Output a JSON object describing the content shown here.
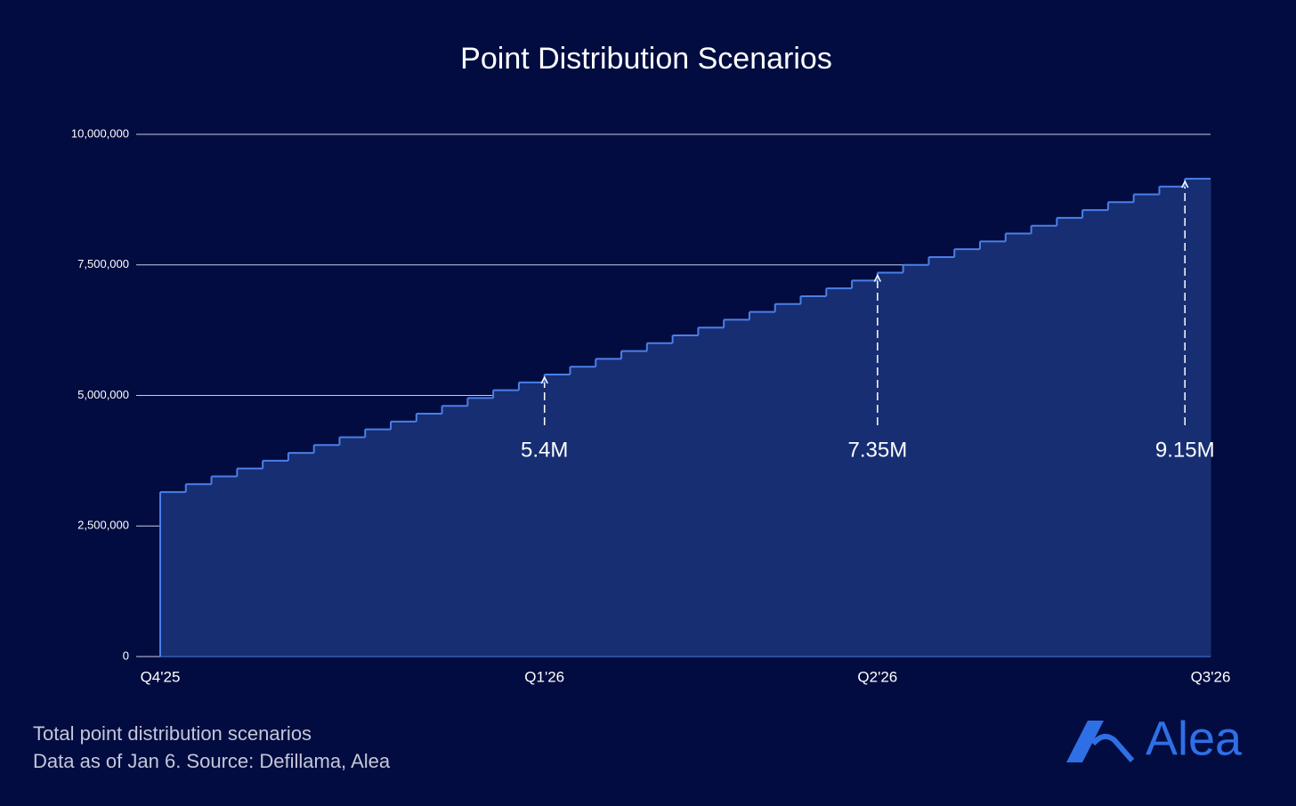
{
  "chart_data": {
    "type": "step-area",
    "title": "Point Distribution Scenarios",
    "x": [
      0,
      1,
      2,
      3,
      4,
      5,
      6,
      7,
      8,
      9,
      10,
      11,
      12,
      13,
      14,
      15,
      16,
      17,
      18,
      19,
      20,
      21,
      22,
      23,
      24,
      25,
      26,
      27,
      28,
      29,
      30,
      31,
      32,
      33,
      34,
      35,
      36,
      37,
      38,
      39,
      40
    ],
    "values": [
      3150000,
      3300000,
      3450000,
      3600000,
      3750000,
      3900000,
      4050000,
      4200000,
      4350000,
      4500000,
      4650000,
      4800000,
      4950000,
      5100000,
      5250000,
      5400000,
      5550000,
      5700000,
      5850000,
      6000000,
      6150000,
      6300000,
      6450000,
      6600000,
      6750000,
      6900000,
      7050000,
      7200000,
      7350000,
      7500000,
      7650000,
      7800000,
      7950000,
      8100000,
      8250000,
      8400000,
      8550000,
      8700000,
      8850000,
      9000000,
      9150000
    ],
    "color": "#4b7fe8",
    "fill": "#172e72",
    "xlim": [
      0,
      41
    ],
    "xticks": [
      {
        "value": 0,
        "label": "Q4'25"
      },
      {
        "value": 15,
        "label": "Q1'26"
      },
      {
        "value": 28,
        "label": "Q2'26"
      },
      {
        "value": 41,
        "label": "Q3'26"
      }
    ],
    "ylim": [
      0,
      10000000
    ],
    "yticks": [
      0,
      {
        "value": 2500000,
        "label": "2,500,000"
      },
      {
        "value": 5000000,
        "label": "5,000,000"
      },
      {
        "value": 7500000,
        "label": "7,500,000"
      },
      {
        "value": 10000000,
        "label": "10,000,000"
      }
    ],
    "grid": true,
    "annotations": [
      {
        "x": 15,
        "value": 5400000,
        "label": "5.4M"
      },
      {
        "x": 28,
        "value": 7350000,
        "label": "7.35M"
      },
      {
        "x": 40,
        "value": 9150000,
        "label": "9.15M"
      }
    ]
  },
  "footer": {
    "caption": "Total point distribution scenarios",
    "source": "Data as of Jan 6. Source: Defillama, Alea",
    "logo": "Alea"
  }
}
